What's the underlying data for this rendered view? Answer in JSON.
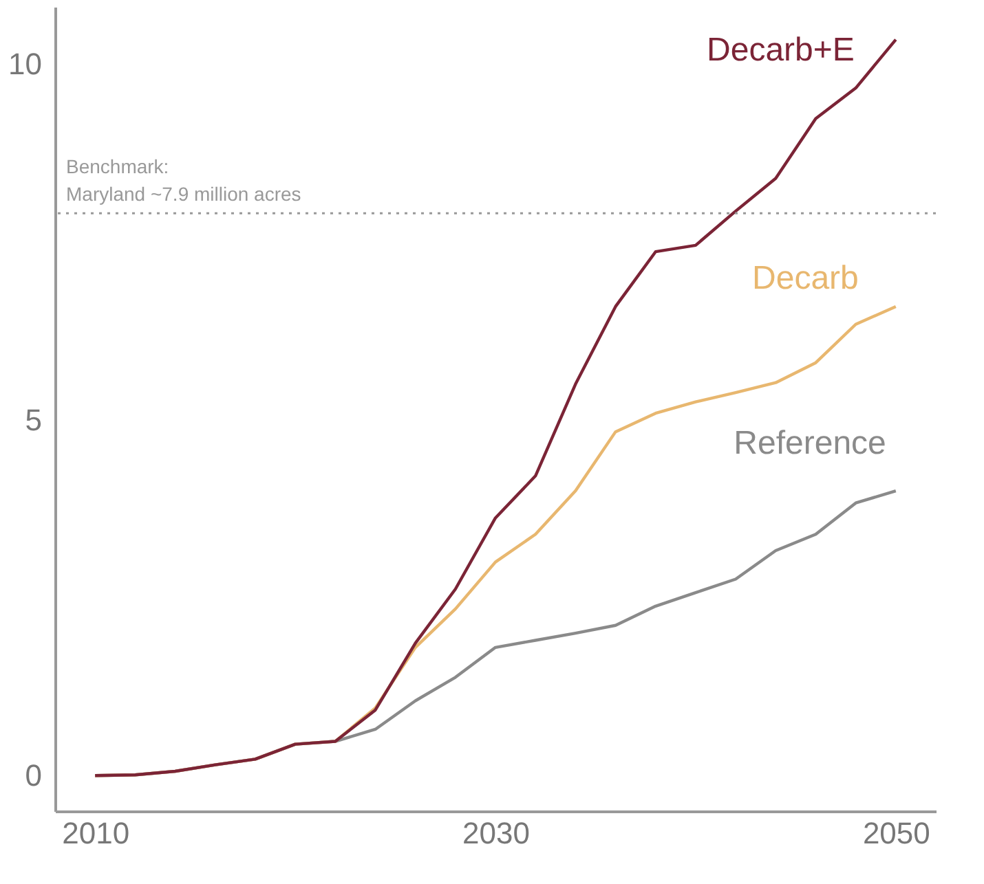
{
  "chart_data": {
    "type": "line",
    "x": [
      2010,
      2012,
      2014,
      2016,
      2018,
      2020,
      2022,
      2024,
      2026,
      2028,
      2030,
      2032,
      2034,
      2036,
      2038,
      2040,
      2042,
      2044,
      2046,
      2048,
      2050
    ],
    "series": [
      {
        "name": "Reference",
        "color": "#8a8a8a",
        "values": [
          0,
          0.01,
          0.06,
          0.15,
          0.23,
          0.44,
          0.48,
          0.65,
          1.05,
          1.38,
          1.8,
          1.9,
          2.0,
          2.11,
          2.38,
          2.57,
          2.76,
          3.16,
          3.39,
          3.83,
          4.0
        ]
      },
      {
        "name": "Decarb",
        "color": "#e8b76f",
        "values": [
          0,
          0.01,
          0.06,
          0.15,
          0.23,
          0.44,
          0.48,
          0.95,
          1.8,
          2.34,
          3.0,
          3.39,
          4.0,
          4.83,
          5.09,
          5.25,
          5.38,
          5.52,
          5.8,
          6.34,
          6.59
        ]
      },
      {
        "name": "Decarb+E",
        "color": "#7b2436",
        "values": [
          0,
          0.01,
          0.06,
          0.15,
          0.23,
          0.44,
          0.48,
          0.92,
          1.86,
          2.62,
          3.62,
          4.21,
          5.5,
          6.59,
          7.36,
          7.45,
          7.93,
          8.39,
          9.23,
          9.66,
          10.34
        ]
      }
    ],
    "xlim": [
      2008,
      2052
    ],
    "xticks": [
      2010,
      2030,
      2050
    ],
    "ylim": [
      -0.5,
      10.8
    ],
    "yticks": [
      0,
      5,
      10
    ],
    "ref_lines": [
      {
        "axis": "y",
        "value": 7.9,
        "label": "Benchmark:\nMaryland ~7.9 million acres",
        "color": "#999999",
        "line_style": "dotted"
      }
    ],
    "grid": false,
    "legend": false,
    "marker": "none",
    "line_style": "solid"
  }
}
